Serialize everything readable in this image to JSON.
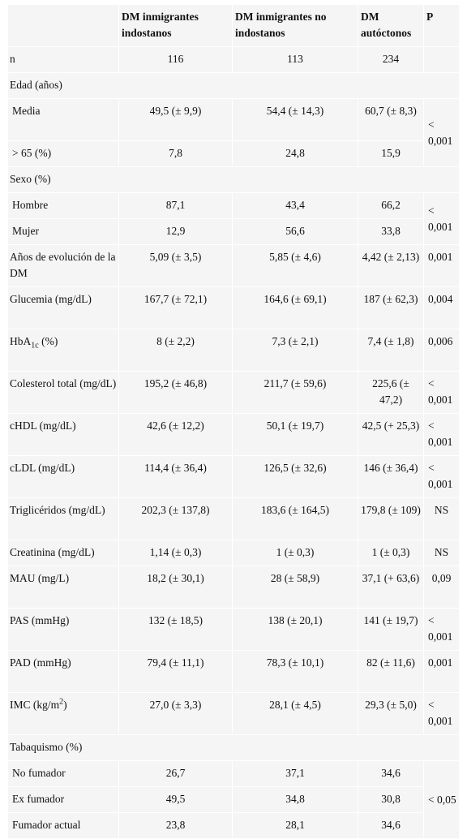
{
  "columns": [
    "",
    "DM inmigrantes indostanos",
    "DM inmigrantes no indostanos",
    "DM autóctonos",
    "P"
  ],
  "rows": {
    "n": {
      "label": "n",
      "a": "116",
      "b": "113",
      "c": "234",
      "p": ""
    },
    "edad": {
      "label": "Edad (años)"
    },
    "media": {
      "label": "Media",
      "a": "49,5 (± 9,9)",
      "b": "54,4 (± 14,3)",
      "c": "60,7 (± 8,3)"
    },
    "mayor65": {
      "label": "> 65 (%)",
      "a": "7,8",
      "b": "24,8",
      "c": "15,9"
    },
    "edad_p": "< 0,001",
    "sexo": {
      "label": "Sexo (%)"
    },
    "hombre": {
      "label": "Hombre",
      "a": "87,1",
      "b": "43,4",
      "c": "66,2"
    },
    "mujer": {
      "label": "Mujer",
      "a": "12,9",
      "b": "56,6",
      "c": "33,8"
    },
    "sexo_p": "< 0,001",
    "anos": {
      "label": "Años de evolución de la DM",
      "a": "5,09 (± 3,5)",
      "b": "5,85 (± 4,6)",
      "c": "4,42 (± 2,13)",
      "p": "0,001"
    },
    "glucemia": {
      "label": "Glucemia (mg/dL)",
      "a": "167,7 (± 72,1)",
      "b": "164,6 (± 69,1)",
      "c": "187 (± 62,3)",
      "p": "0,004"
    },
    "hba1c": {
      "label_main": "HbA",
      "label_sub": "1c",
      "label_rest": " (%)",
      "a": "8 (± 2,2)",
      "b": "7,3 (± 2,1)",
      "c": "7,4 (± 1,8)",
      "p": "0,006"
    },
    "colesterol": {
      "label": "Colesterol total (mg/dL)",
      "a": "195,2 (± 46,8)",
      "b": "211,7 (± 59,6)",
      "c": "225,6 (± 47,2)",
      "p": "< 0,001"
    },
    "chdl": {
      "label": "cHDL (mg/dL)",
      "a": "42,6 (± 12,2)",
      "b": "50,1 (± 19,7)",
      "c": "42,5 (+ 25,3)",
      "p": "< 0,001"
    },
    "cldl": {
      "label": "cLDL (mg/dL)",
      "a": "114,4 (± 36,4)",
      "b": "126,5 (± 32,6)",
      "c": "146 (± 36,4)",
      "p": "< 0,001"
    },
    "trig": {
      "label": "Triglicéridos (mg/dL)",
      "a": "202,3 (± 137,8)",
      "b": "183,6 (± 164,5)",
      "c": "179,8 (± 109)",
      "p": "NS"
    },
    "creat": {
      "label": "Creatinina (mg/dL)",
      "a": "1,14 (± 0,3)",
      "b": "1 (± 0,3)",
      "c": "1 (± 0,3)",
      "p": "NS"
    },
    "mau": {
      "label": "MAU (mg/L)",
      "a": "18,2 (± 30,1)",
      "b": "28 (± 58,9)",
      "c": "37,1 (+ 63,6)",
      "p": "0,09"
    },
    "pas": {
      "label": "PAS (mmHg)",
      "a": "132 (± 18,5)",
      "b": "138 (± 20,1)",
      "c": "141 (± 19,7)",
      "p": "< 0,001"
    },
    "pad": {
      "label": "PAD (mmHg)",
      "a": "79,4 (± 11,1)",
      "b": "78,3 (± 10,1)",
      "c": "82 (± 11,6)",
      "p": "0,001"
    },
    "imc": {
      "label_main": "IMC (kg/m",
      "label_sup": "2",
      "label_rest": ")",
      "a": "27,0 (± 3,3)",
      "b": "28,1 (± 4,5)",
      "c": "29,3 (± 5,0)",
      "p": "< 0,001"
    },
    "tabaquismo": {
      "label": "Tabaquismo (%)"
    },
    "nofum": {
      "label": "No fumador",
      "a": "26,7",
      "b": "37,1",
      "c": "34,6"
    },
    "exfum": {
      "label": "Ex fumador",
      "a": "49,5",
      "b": "34,8",
      "c": "30,8"
    },
    "fumact": {
      "label": "Fumador actual",
      "a": "23,8",
      "b": "28,1",
      "c": "34,6"
    },
    "tab_p": "< 0,05"
  }
}
